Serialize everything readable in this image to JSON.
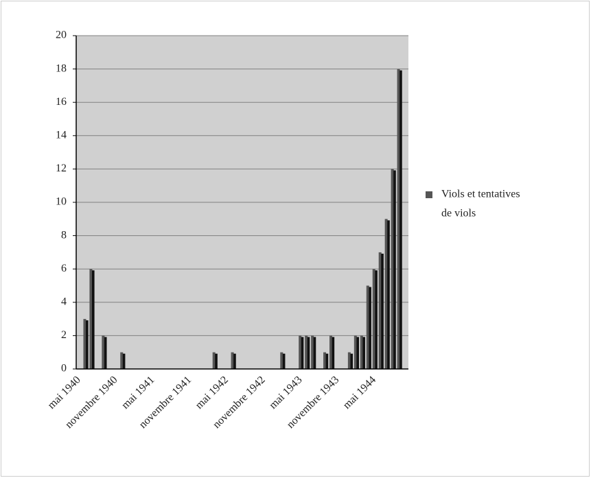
{
  "chart_data": {
    "type": "bar",
    "categories": [
      "mai 1940",
      null,
      null,
      null,
      null,
      null,
      "novembre 1940",
      null,
      null,
      null,
      null,
      null,
      "mai 1941",
      null,
      null,
      null,
      null,
      null,
      "novembre 1941",
      null,
      null,
      null,
      null,
      null,
      "mai 1942",
      null,
      null,
      null,
      null,
      null,
      "novembre 1942",
      null,
      null,
      null,
      null,
      null,
      "mai 1943",
      null,
      null,
      null,
      null,
      null,
      "novembre 1943",
      null,
      null,
      null,
      null,
      null,
      "mai 1944",
      null,
      null,
      null,
      null,
      null
    ],
    "series": [
      {
        "name": "Viols et tentatives de viols",
        "color": "#555555",
        "values": [
          0,
          3,
          6,
          0,
          2,
          0,
          0,
          1,
          0,
          0,
          0,
          0,
          0,
          0,
          0,
          0,
          0,
          0,
          0,
          0,
          0,
          0,
          1,
          0,
          0,
          1,
          0,
          0,
          0,
          0,
          0,
          0,
          0,
          1,
          0,
          0,
          2,
          2,
          2,
          0,
          1,
          2,
          0,
          0,
          1,
          2,
          2,
          5,
          6,
          7,
          9,
          12,
          18,
          0
        ]
      }
    ],
    "ylim": [
      0,
      20
    ],
    "yticks": [
      0,
      2,
      4,
      6,
      8,
      10,
      12,
      14,
      16,
      18,
      20
    ],
    "grid": true,
    "legend": "right"
  }
}
